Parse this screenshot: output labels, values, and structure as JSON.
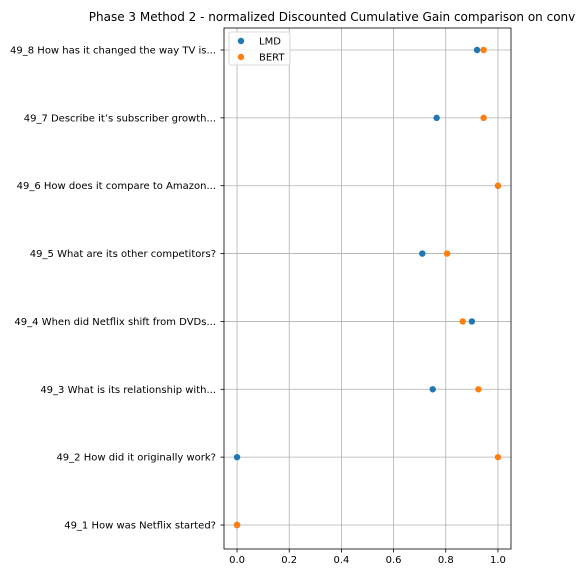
{
  "chart_data": {
    "type": "scatter",
    "title": "Phase 3 Method 2 - normalized Discounted Cumulative Gain comparison on conv",
    "xlabel": "",
    "ylabel": "",
    "xlim": [
      -0.05,
      1.05
    ],
    "xticks": [
      0.0,
      0.2,
      0.4,
      0.6,
      0.8,
      1.0
    ],
    "xtick_labels": [
      "0.0",
      "0.2",
      "0.4",
      "0.6",
      "0.8",
      "1.0"
    ],
    "categories": [
      "49_1 How was Netflix started?",
      "49_2 How did it originally work?",
      "49_3 What is its relationship with...",
      "49_4 When did Netflix shift from DVDs...",
      "49_5 What are its other competitors?",
      "49_6 How does it compare to Amazon...",
      "49_7 Describe it’s subscriber growth...",
      "49_8 How has it changed the way TV is..."
    ],
    "series": [
      {
        "name": "LMD",
        "color": "#1f77b4",
        "values": [
          0.0,
          0.0,
          0.75,
          0.9,
          0.71,
          1.0,
          0.765,
          0.92
        ]
      },
      {
        "name": "BERT",
        "color": "#ff7f0e",
        "values": [
          0.0,
          1.0,
          0.925,
          0.865,
          0.805,
          1.0,
          0.945,
          0.945
        ]
      }
    ],
    "grid": true,
    "legend_position": "top-left"
  }
}
